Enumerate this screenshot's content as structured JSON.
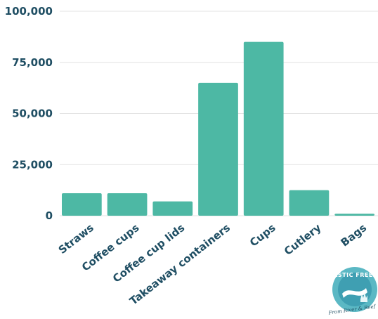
{
  "chart_data": {
    "type": "bar",
    "categories": [
      "Straws",
      "Coffee cups",
      "Coffee cup lids",
      "Takeaway containers",
      "Cups",
      "Cutlery",
      "Bags"
    ],
    "values": [
      11000,
      11000,
      7000,
      65000,
      85000,
      12500,
      1000
    ],
    "yticks": [
      "100,000",
      "75,000",
      "50,000",
      "25,000",
      "0"
    ],
    "ylim": [
      0,
      100000
    ],
    "grid": true,
    "bar_color": "#4db8a4"
  },
  "logo": {
    "text": "PLASTIC FREE CQ",
    "subtext": "From River & Reef"
  }
}
